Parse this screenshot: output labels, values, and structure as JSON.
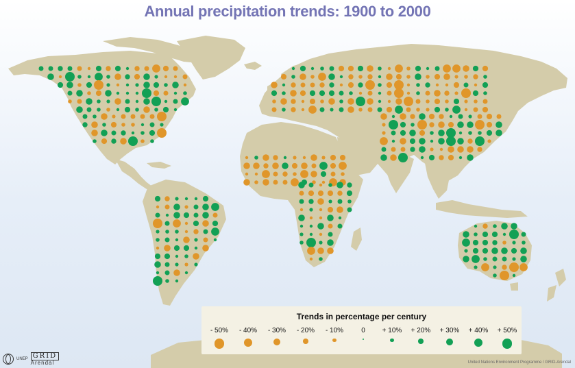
{
  "title": "Annual precipitation trends: 1900 to 2000",
  "legend": {
    "title": "Trends in percentage per century",
    "items": [
      {
        "label": "- 50%",
        "value": -50
      },
      {
        "label": "- 40%",
        "value": -40
      },
      {
        "label": "- 30%",
        "value": -30
      },
      {
        "label": "- 20%",
        "value": -20
      },
      {
        "label": "- 10%",
        "value": -10
      },
      {
        "label": "0",
        "value": 0
      },
      {
        "label": "+ 10%",
        "value": 10
      },
      {
        "label": "+ 20%",
        "value": 20
      },
      {
        "label": "+ 30%",
        "value": 30
      },
      {
        "label": "+ 40%",
        "value": 40
      },
      {
        "label": "+ 50%",
        "value": 50
      }
    ]
  },
  "colors": {
    "decrease": "#e0962a",
    "increase": "#12a055",
    "land": "#d4ccaa",
    "ocean_top": "#ffffff",
    "ocean_bottom": "#dde7f3",
    "title": "#7374b4"
  },
  "logo": {
    "org": "UNEP",
    "grid": "GRID",
    "place": "Arendal"
  },
  "credit": "United Nations Environment Programme / GRID-Arendal"
}
